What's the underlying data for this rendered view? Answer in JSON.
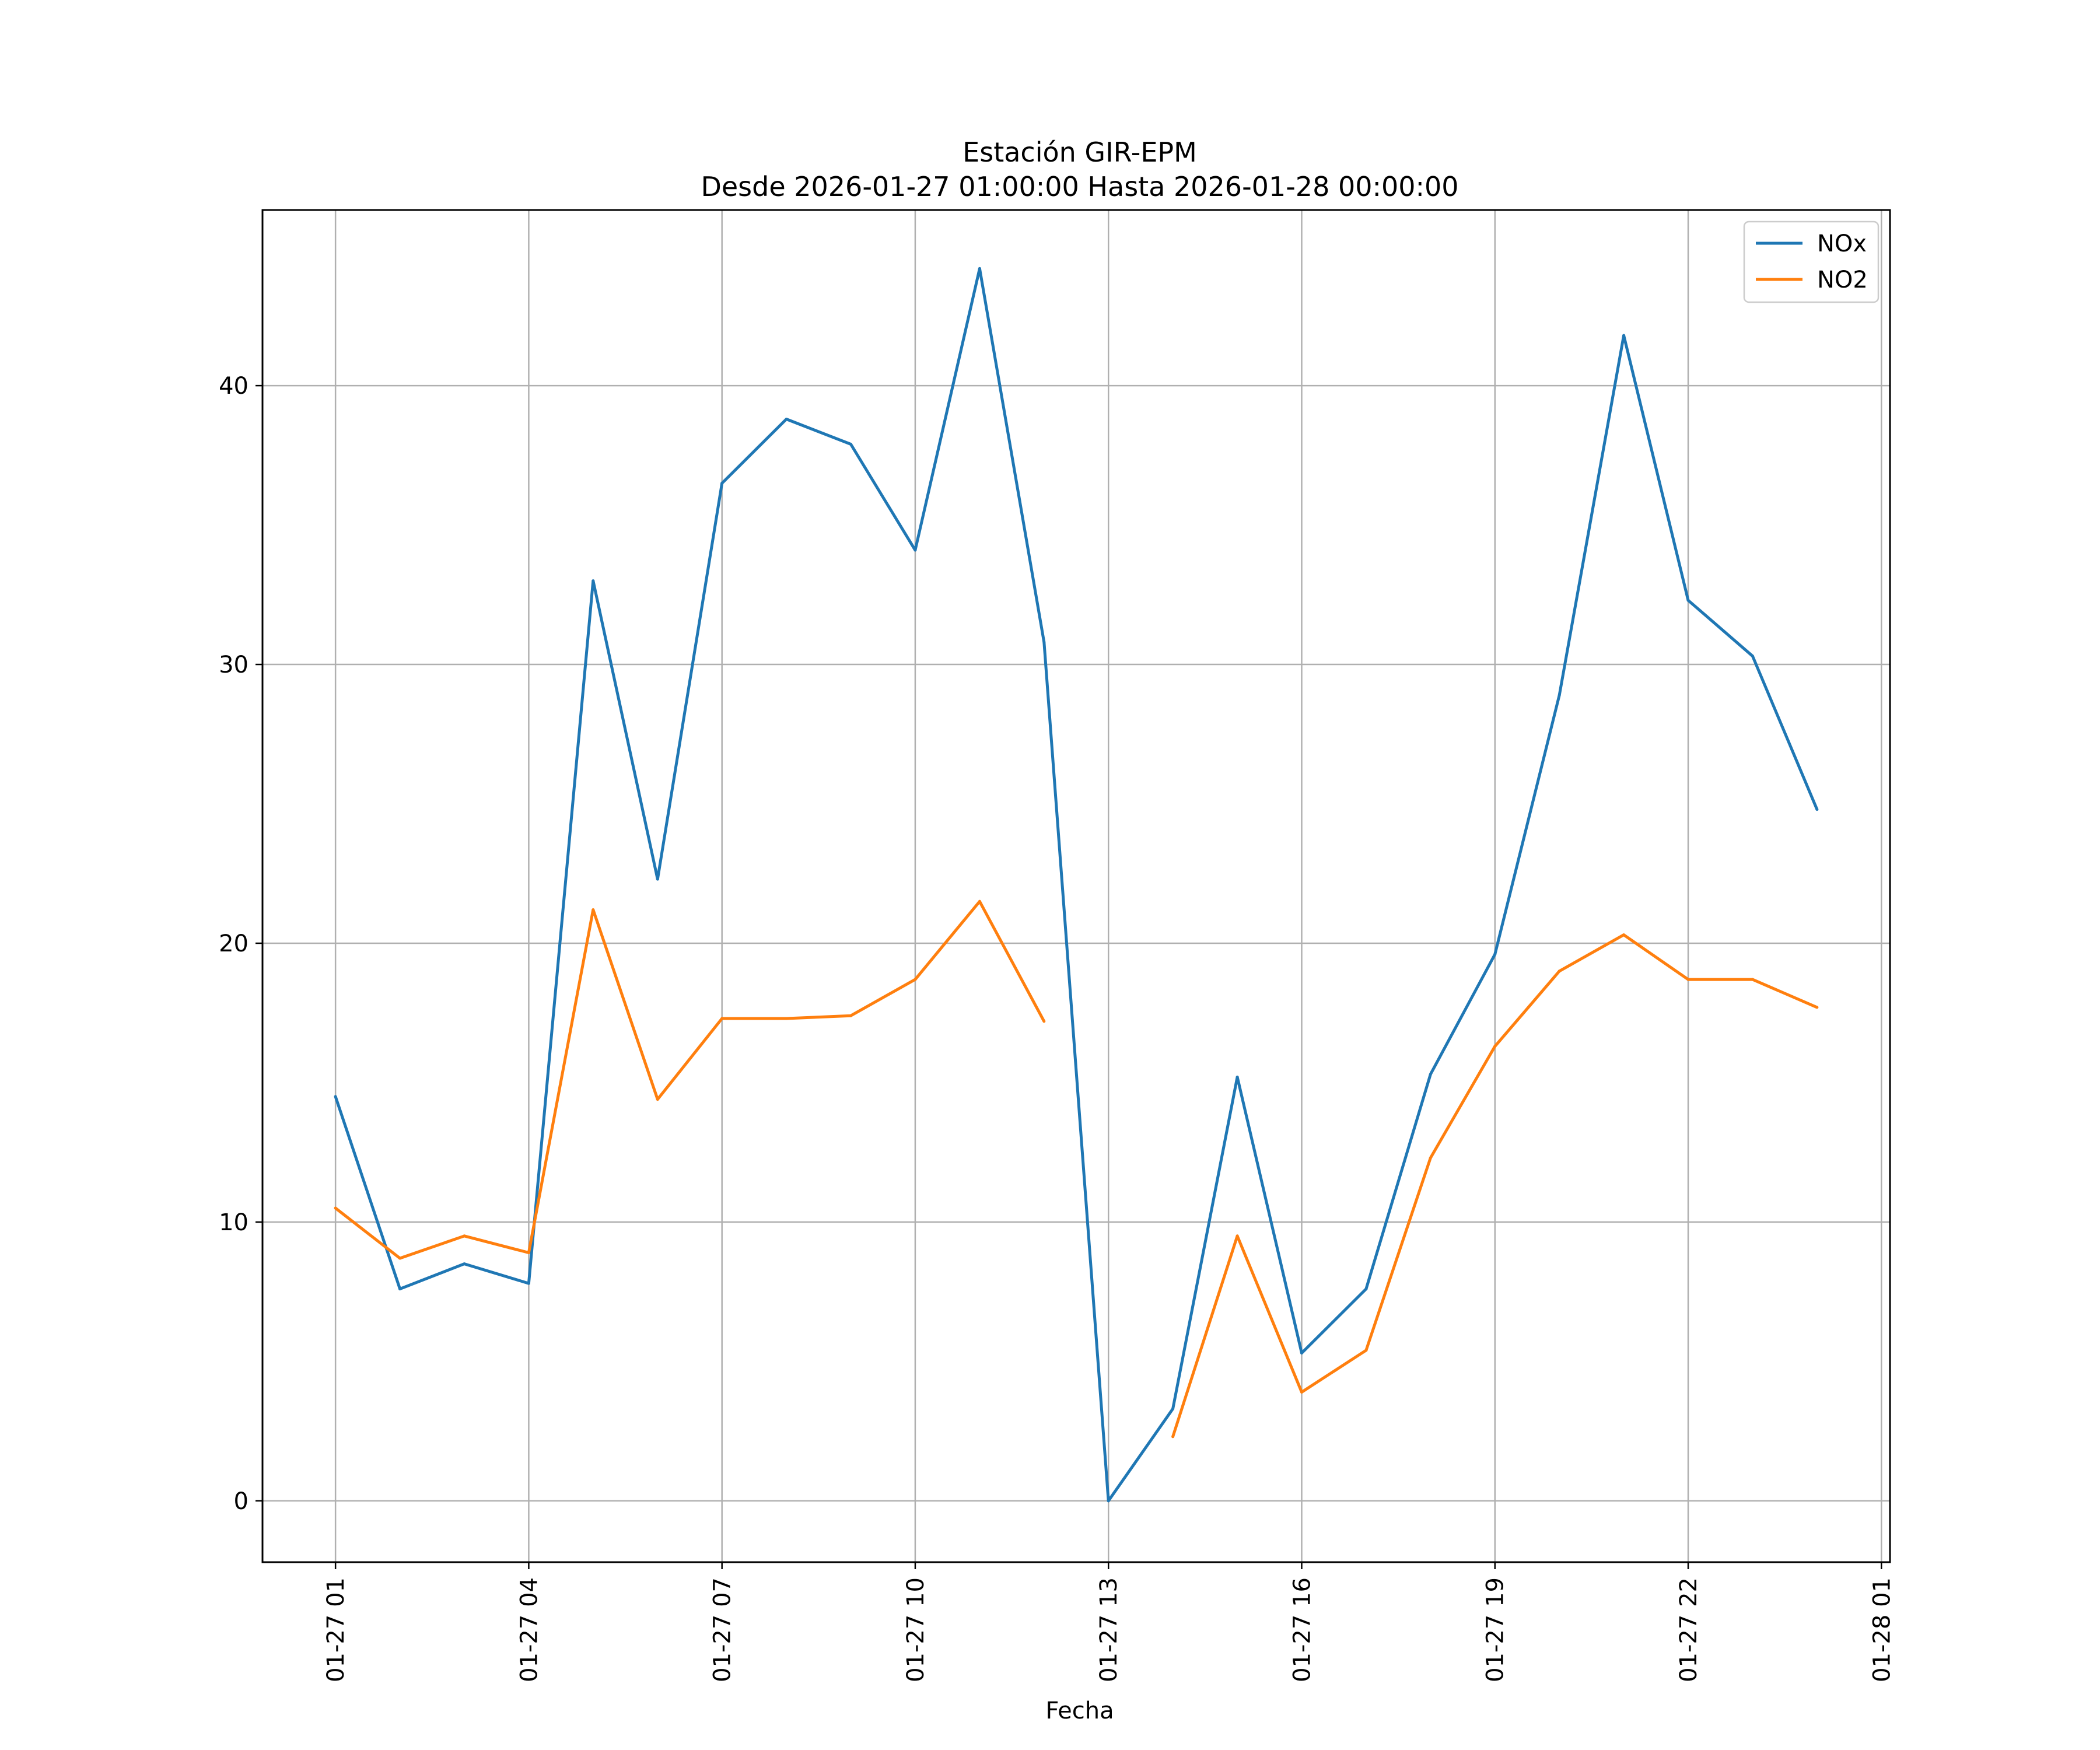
{
  "chart_data": {
    "type": "line",
    "title": "Estación GIR-EPM",
    "subtitle": "Desde 2026-01-27 01:00:00 Hasta 2026-01-28 00:00:00",
    "xlabel": "Fecha",
    "ylabel": "",
    "x_type": "datetime",
    "x": [
      "2026-01-27 01:00",
      "2026-01-27 02:00",
      "2026-01-27 03:00",
      "2026-01-27 04:00",
      "2026-01-27 05:00",
      "2026-01-27 06:00",
      "2026-01-27 07:00",
      "2026-01-27 08:00",
      "2026-01-27 09:00",
      "2026-01-27 10:00",
      "2026-01-27 11:00",
      "2026-01-27 12:00",
      "2026-01-27 13:00",
      "2026-01-27 14:00",
      "2026-01-27 15:00",
      "2026-01-27 16:00",
      "2026-01-27 17:00",
      "2026-01-27 18:00",
      "2026-01-27 19:00",
      "2026-01-27 20:00",
      "2026-01-27 21:00",
      "2026-01-27 22:00",
      "2026-01-27 23:00",
      "2026-01-28 00:00"
    ],
    "x_ticks": [
      "2026-01-27 01:00",
      "2026-01-27 04:00",
      "2026-01-27 07:00",
      "2026-01-27 10:00",
      "2026-01-27 13:00",
      "2026-01-27 16:00",
      "2026-01-27 19:00",
      "2026-01-27 22:00",
      "2026-01-28 01:00"
    ],
    "x_tick_labels": [
      "01-27 01",
      "01-27 04",
      "01-27 07",
      "01-27 10",
      "01-27 13",
      "01-27 16",
      "01-27 19",
      "01-27 22",
      "01-28 01"
    ],
    "xlim": [
      "2026-01-26 23:52",
      "2026-01-28 01:08"
    ],
    "ylim": [
      -2.2,
      46.3
    ],
    "y_ticks": [
      0,
      10,
      20,
      30,
      40
    ],
    "y_tick_labels": [
      "0",
      "10",
      "20",
      "30",
      "40"
    ],
    "grid": true,
    "legend_position": "top-right",
    "series": [
      {
        "name": "NOx",
        "color": "#1f77b4",
        "values": [
          14.5,
          7.6,
          8.5,
          7.8,
          33.0,
          22.3,
          36.5,
          38.8,
          37.9,
          34.1,
          44.2,
          30.8,
          0.0,
          3.3,
          15.2,
          5.3,
          7.6,
          15.3,
          19.6,
          28.9,
          41.8,
          32.3,
          30.3,
          24.8
        ]
      },
      {
        "name": "NO2",
        "color": "#ff7f0e",
        "values": [
          10.5,
          8.7,
          9.5,
          8.9,
          21.2,
          14.4,
          17.3,
          17.3,
          17.4,
          18.7,
          21.5,
          17.2,
          null,
          2.3,
          9.5,
          3.9,
          5.4,
          12.3,
          16.3,
          19.0,
          20.3,
          18.7,
          18.7,
          17.7
        ]
      }
    ]
  }
}
